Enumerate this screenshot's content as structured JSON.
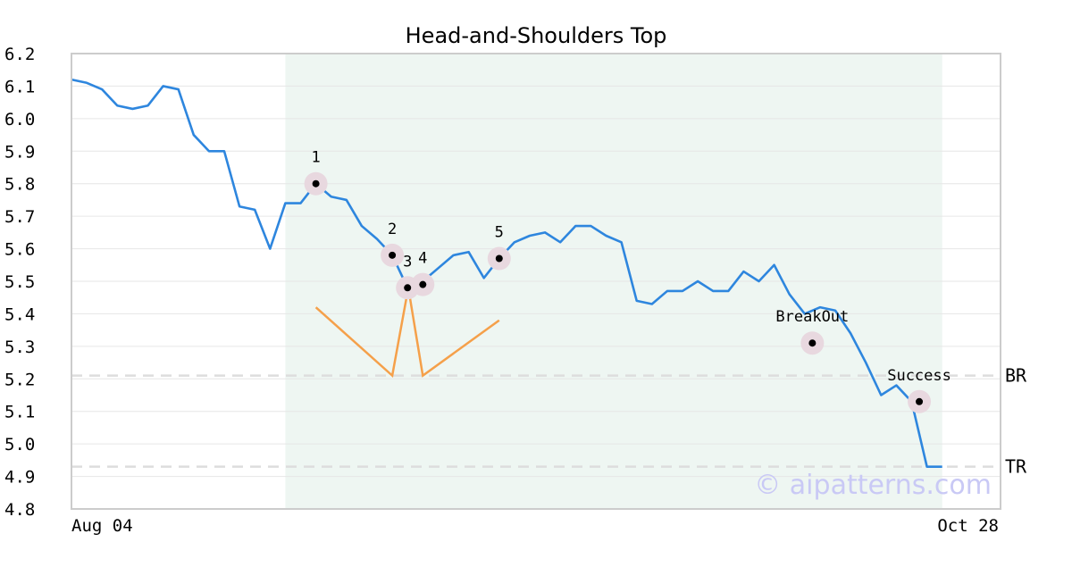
{
  "chart_data": {
    "type": "line",
    "title": "Head-and-Shoulders Top",
    "xlabel": "",
    "ylabel": "",
    "ylim": [
      4.8,
      6.2
    ],
    "y_ticks": [
      "6.2",
      "6.1",
      "6.0",
      "5.9",
      "5.8",
      "5.7",
      "5.6",
      "5.5",
      "5.4",
      "5.3",
      "5.2",
      "5.1",
      "5.0",
      "4.9",
      "4.8"
    ],
    "x_tick_labels": [
      "Aug 04",
      "Oct 28"
    ],
    "grid": true,
    "series": [
      {
        "values": [
          6.12,
          6.11,
          6.09,
          6.04,
          6.03,
          6.04,
          6.1,
          6.09,
          5.95,
          5.9,
          5.9,
          5.73,
          5.72,
          5.6,
          5.74,
          5.74,
          5.8,
          5.76,
          5.75,
          5.67,
          5.63,
          5.58,
          5.48,
          5.5,
          5.54,
          5.58,
          5.59,
          5.51,
          5.57,
          5.62,
          5.64,
          5.65,
          5.62,
          5.67,
          5.67,
          5.64,
          5.62,
          5.44,
          5.43,
          5.47,
          5.47,
          5.5,
          5.47,
          5.47,
          5.53,
          5.5,
          5.55,
          5.46,
          5.4,
          5.42,
          5.41,
          5.34,
          5.25,
          5.15,
          5.18,
          5.13,
          4.93,
          4.93
        ]
      }
    ],
    "pattern_region": {
      "start_index": 14,
      "end_index": 57
    },
    "annotations": [
      {
        "label": "1",
        "index": 16,
        "value": 5.8
      },
      {
        "label": "2",
        "index": 21,
        "value": 5.58
      },
      {
        "label": "3",
        "index": 22,
        "value": 5.48
      },
      {
        "label": "4",
        "index": 23,
        "value": 5.49
      },
      {
        "label": "5",
        "index": 28,
        "value": 5.57
      },
      {
        "label": "BreakOut",
        "index": 48.5,
        "value": 5.31
      },
      {
        "label": "Success",
        "index": 55.5,
        "value": 5.13
      }
    ],
    "pattern_lines": [
      [
        [
          16,
          5.42
        ],
        [
          21,
          5.21
        ],
        [
          22.05,
          5.48
        ],
        [
          23,
          5.21
        ],
        [
          28,
          5.38
        ]
      ]
    ],
    "reference_lines": [
      {
        "label": "BR",
        "value": 5.21
      },
      {
        "label": "TR",
        "value": 4.93
      }
    ],
    "watermark": "© aipatterns.com",
    "colors": {
      "line": "#2e86de",
      "pattern": "#f5a04a",
      "region": "#eef6f2",
      "marker_halo": "#e8d8df",
      "marker": "#000000",
      "refline": "#dddddd",
      "grid": "#e6e6e6",
      "axes": "#cccccc",
      "watermark": "#c9c9f5"
    }
  }
}
